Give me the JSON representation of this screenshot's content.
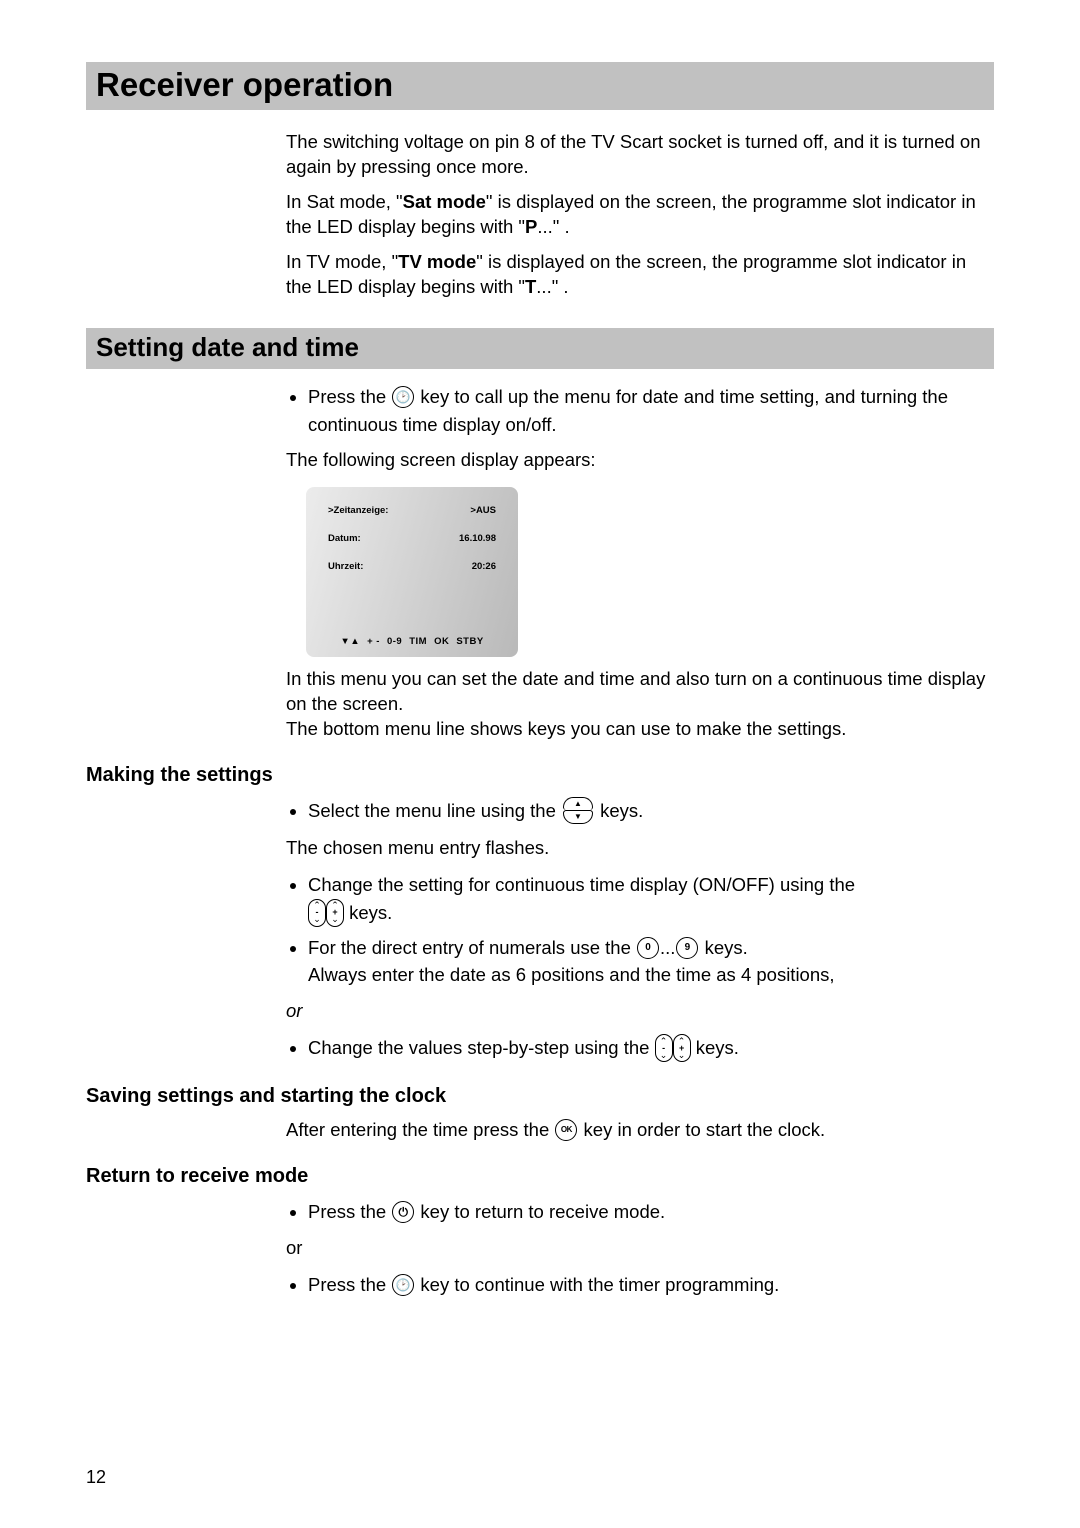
{
  "page_number": "12",
  "title_bar": "Receiver operation",
  "intro": {
    "p1": "The switching voltage on pin 8 of the TV Scart socket is turned off, and it is turned on again by pressing once more.",
    "p2a": "In Sat mode, \"",
    "p2b": "Sat mode",
    "p2c": "\" is displayed on the screen, the programme slot indicator in the LED display begins with \"",
    "p2d": "P",
    "p2e": "...\" .",
    "p3a": "In TV mode, \"",
    "p3b": "TV mode",
    "p3c": "\" is displayed on the screen, the programme slot indicator in the LED display begins with \"",
    "p3d": "T",
    "p3e": "...\" ."
  },
  "section2": {
    "heading": "Setting date and time",
    "bullet1a": "Press the ",
    "bullet1b": " key to call up the menu for date and time setting, and turning the continuous time display on/off.",
    "following": "The following screen display appears:"
  },
  "screen": {
    "r1l": ">Zeitanzeige:",
    "r1r": ">AUS",
    "r2l": "Datum:",
    "r2r": "16.10.98",
    "r3l": "Uhrzeit:",
    "r3r": "20:26",
    "footer_pm": "+ -",
    "footer_09": "0-9",
    "footer_tim": "TIM",
    "footer_ok": "OK",
    "footer_stby": "STBY"
  },
  "after_screen": {
    "p1": "In this menu you can set the date and time and also turn on a continuous time display on the screen.",
    "p2": "The bottom menu line shows keys you can use to make the settings."
  },
  "making": {
    "heading": "Making the settings",
    "b1a": "Select the menu line using the ",
    "b1b": " keys.",
    "flash": "The chosen menu entry flashes.",
    "b2a": "Change the setting for continuous time display (ON/OFF) using the ",
    "b2b": " keys.",
    "b3a": "For the direct entry of numerals use the ",
    "b3b": "...",
    "b3c": " keys.",
    "b3d": "Always enter the date as 6 positions and the time as 4 positions,",
    "or": "or",
    "b4a": "Change the values step-by-step using the ",
    "b4b": " keys."
  },
  "saving": {
    "heading": "Saving settings and starting the clock",
    "p_a": "After entering the time press the ",
    "p_b": " key in order to start the clock."
  },
  "return": {
    "heading": "Return to receive mode",
    "b1a": "Press the ",
    "b1b": " key to return to receive mode.",
    "or": "or",
    "b2a": "Press the ",
    "b2b": " key to continue with the timer programming."
  }
}
